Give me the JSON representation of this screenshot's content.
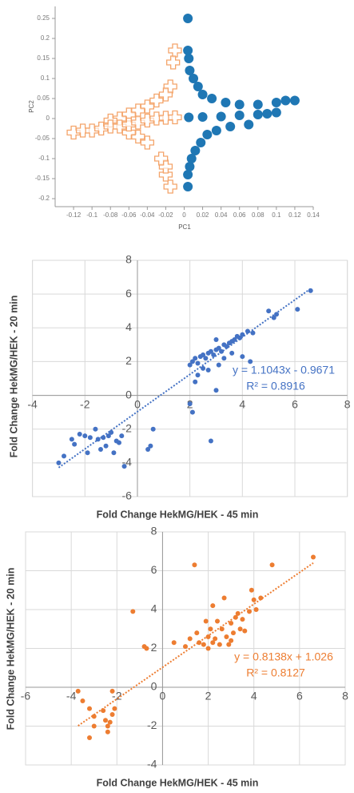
{
  "chart_data": [
    {
      "type": "scatter",
      "x_label": "PC1",
      "y_label": "PC2",
      "xlim": [
        -0.14,
        0.14
      ],
      "ylim": [
        -0.22,
        0.28
      ],
      "xticks": [
        -0.12,
        -0.1,
        -0.08,
        -0.06,
        -0.04,
        -0.02,
        0,
        0.02,
        0.04,
        0.06,
        0.08,
        0.1,
        0.12,
        0.14
      ],
      "yticks": [
        -0.2,
        -0.15,
        -0.1,
        -0.05,
        0,
        0.05,
        0.1,
        0.15,
        0.2,
        0.25
      ],
      "grid": false,
      "series": [
        {
          "color": "#f4a46a",
          "marker": "cross",
          "x": [
            -0.01,
            -0.012,
            -0.015,
            -0.02,
            -0.03,
            -0.04,
            -0.05,
            -0.06,
            -0.07,
            -0.08,
            -0.015,
            -0.02,
            -0.02,
            -0.025,
            -0.04,
            -0.05,
            -0.06,
            -0.12,
            -0.11,
            -0.1,
            -0.09,
            -0.08,
            -0.07,
            -0.06,
            -0.05,
            -0.04,
            -0.03,
            -0.02,
            -0.01
          ],
          "y": [
            0.17,
            0.14,
            0.08,
            0.06,
            0.045,
            0.03,
            0.02,
            0.01,
            0.0,
            -0.005,
            -0.17,
            -0.14,
            -0.12,
            -0.1,
            -0.06,
            -0.045,
            -0.035,
            -0.035,
            -0.03,
            -0.03,
            -0.025,
            -0.02,
            -0.02,
            -0.015,
            -0.01,
            -0.005,
            0.0,
            0.002,
            0.003
          ]
        },
        {
          "color": "#1f77b4",
          "marker": "circle",
          "x": [
            0.004,
            0.004,
            0.005,
            0.006,
            0.01,
            0.015,
            0.02,
            0.03,
            0.045,
            0.06,
            0.08,
            0.1,
            0.11,
            0.12,
            0.004,
            0.004,
            0.006,
            0.008,
            0.012,
            0.018,
            0.025,
            0.035,
            0.05,
            0.07,
            0.005,
            0.02,
            0.04,
            0.06,
            0.08,
            0.09,
            0.1
          ],
          "y": [
            0.25,
            0.17,
            0.15,
            0.12,
            0.1,
            0.08,
            0.06,
            0.05,
            0.04,
            0.035,
            0.035,
            0.04,
            0.045,
            0.045,
            -0.17,
            -0.14,
            -0.12,
            -0.1,
            -0.08,
            -0.06,
            -0.04,
            -0.03,
            -0.02,
            -0.015,
            0.003,
            0.004,
            0.005,
            0.008,
            0.01,
            0.012,
            0.015
          ]
        }
      ]
    },
    {
      "type": "scatter",
      "x_label": "Fold Change HekMG/HEK - 45 min",
      "y_label": "Fold Change HekMG/HEK - 20 min",
      "xlim": [
        -4,
        8
      ],
      "ylim": [
        -6,
        8
      ],
      "xticks": [
        -4,
        -2,
        0,
        2,
        4,
        6,
        8
      ],
      "yticks": [
        -6,
        -4,
        -2,
        0,
        2,
        4,
        6,
        8
      ],
      "grid": true,
      "trendline": {
        "label": "y = 1.1043x - 0.9671",
        "r2_label": "R² = 0.8916",
        "slope": 1.1043,
        "intercept": -0.9671
      },
      "series": [
        {
          "color": "#4472c4",
          "marker": "dot",
          "x": [
            2,
            2.1,
            2.2,
            2.3,
            2.4,
            2.5,
            2.6,
            2.7,
            2.8,
            2.9,
            3,
            3.1,
            3.2,
            3.3,
            3.4,
            3.5,
            3.6,
            3.7,
            3.8,
            3.9,
            4,
            4.2,
            4.4,
            3,
            3.3,
            2.7,
            2.3,
            2.2,
            2.5,
            3.6,
            4,
            4.3,
            3.1,
            5,
            5.2,
            5.3,
            6.1,
            6.6,
            2,
            2.1,
            3,
            2.8,
            0.5,
            0.6,
            0.4,
            -3,
            -2.8,
            -2.5,
            -2.4,
            -2.2,
            -2,
            -1.8,
            -1.6,
            -1.5,
            -1.4,
            -1.3,
            -1.2,
            -1,
            -0.9,
            -0.8,
            -0.7,
            -0.5,
            -0.6,
            -1.9,
            -1.1
          ],
          "y": [
            1.8,
            2,
            2.2,
            1.9,
            2.3,
            2.4,
            2.2,
            2.5,
            2.6,
            2.4,
            2.7,
            2.8,
            2.6,
            3,
            2.9,
            3.1,
            3.2,
            3.3,
            3.5,
            3.4,
            3.6,
            3.8,
            3.7,
            3.3,
            2.2,
            1.5,
            1.2,
            0.8,
            1.6,
            2.5,
            2.3,
            2,
            1.8,
            5,
            4.6,
            4.8,
            5.1,
            6.2,
            -0.5,
            -1,
            0.3,
            -2.7,
            -3,
            -2,
            -3.2,
            -4,
            -3.6,
            -2.6,
            -2.9,
            -2.3,
            -2.4,
            -2.5,
            -2,
            -2.6,
            -3.2,
            -2.5,
            -3,
            -2.2,
            -3.4,
            -2.7,
            -2.8,
            -4.2,
            -2.4,
            -3.4,
            -2.4
          ]
        }
      ]
    },
    {
      "type": "scatter",
      "x_label": "Fold Change HekMG/HEK - 45 min",
      "y_label": "Fold Change HekMG/HEK - 20 min",
      "xlim": [
        -6,
        8
      ],
      "ylim": [
        -4,
        8
      ],
      "xticks": [
        -6,
        -4,
        -2,
        0,
        2,
        4,
        6,
        8
      ],
      "yticks": [
        -4,
        -2,
        0,
        2,
        4,
        6,
        8
      ],
      "grid": true,
      "trendline": {
        "label": "y = 0.8138x + 1.026",
        "r2_label": "R² = 0.8127",
        "slope": 0.8138,
        "intercept": 1.026
      },
      "series": [
        {
          "color": "#ed7d31",
          "marker": "dot",
          "x": [
            -3.7,
            -3.5,
            -3.2,
            -3,
            -3,
            -3.2,
            -2.6,
            -2.5,
            -2.4,
            -2.4,
            -2.3,
            -2.2,
            -2.1,
            -2.2,
            -1.3,
            -0.8,
            -0.7,
            0.5,
            1,
            1.2,
            1.4,
            1.5,
            1.6,
            1.8,
            2,
            2,
            2.1,
            2.2,
            2.3,
            2.4,
            2.5,
            2.6,
            2.7,
            2.8,
            3,
            3,
            3.2,
            3.3,
            3.4,
            3.5,
            3.6,
            3.8,
            3.9,
            4,
            4.1,
            4.3,
            4.8,
            6.6,
            2.2,
            3.1,
            1.9,
            2.9
          ],
          "y": [
            -0.2,
            -0.7,
            -1.1,
            -1.5,
            -2,
            -2.6,
            -1.2,
            -1.7,
            -2,
            -2.3,
            -1.8,
            -0.2,
            -1.1,
            -1.4,
            3.9,
            2.1,
            2,
            2.3,
            2.1,
            2.5,
            6.3,
            2.8,
            2.3,
            2.2,
            2.6,
            2,
            3,
            2.3,
            2.5,
            3.4,
            2.2,
            3,
            4.6,
            2.6,
            3.3,
            2.4,
            3.6,
            3.8,
            3,
            3.5,
            2.9,
            3.9,
            5,
            4.5,
            4,
            4.6,
            6.3,
            6.7,
            4.2,
            2.8,
            3.4,
            2.2
          ]
        }
      ]
    }
  ]
}
